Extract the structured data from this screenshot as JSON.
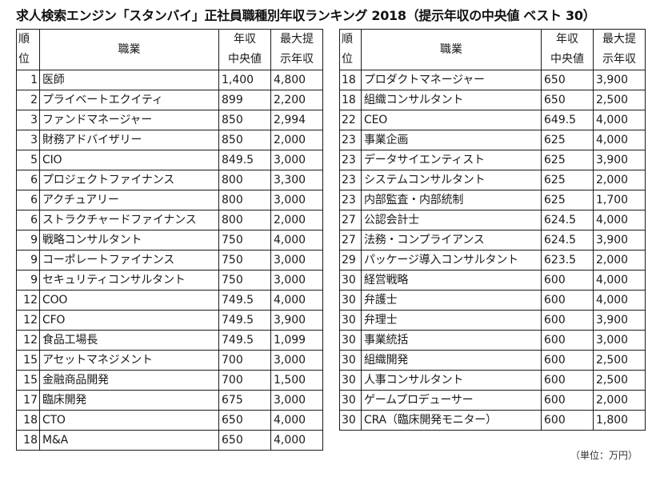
{
  "title": "求人検索エンジン「スタンバイ」正社員職種別年収ランキング 2018（提示年収の中央値 ベスト 30）",
  "headers": {
    "rank_line1": "順",
    "rank_line2": "位",
    "job": "職業",
    "median_line1": "年収",
    "median_line2": "中央値",
    "max_line1": "最大提",
    "max_line2": "示年収"
  },
  "unit_note": "（単位：万円）",
  "left_table": [
    {
      "rank": "1",
      "job": "医師",
      "median": "1,400",
      "max": "4,800"
    },
    {
      "rank": "2",
      "job": "プライベートエクイティ",
      "median": "899",
      "max": "2,200"
    },
    {
      "rank": "3",
      "job": "ファンドマネージャー",
      "median": "850",
      "max": "2,994"
    },
    {
      "rank": "3",
      "job": "財務アドバイザリー",
      "median": "850",
      "max": "2,000"
    },
    {
      "rank": "5",
      "job": "CIO",
      "median": "849.5",
      "max": "3,000"
    },
    {
      "rank": "6",
      "job": "プロジェクトファイナンス",
      "median": "800",
      "max": "3,300"
    },
    {
      "rank": "6",
      "job": "アクチュアリー",
      "median": "800",
      "max": "3,000"
    },
    {
      "rank": "6",
      "job": "ストラクチャードファイナンス",
      "median": "800",
      "max": "2,000"
    },
    {
      "rank": "9",
      "job": "戦略コンサルタント",
      "median": "750",
      "max": "4,000"
    },
    {
      "rank": "9",
      "job": "コーポレートファイナンス",
      "median": "750",
      "max": "3,000"
    },
    {
      "rank": "9",
      "job": "セキュリティコンサルタント",
      "median": "750",
      "max": "3,000"
    },
    {
      "rank": "12",
      "job": "COO",
      "median": "749.5",
      "max": "4,000"
    },
    {
      "rank": "12",
      "job": "CFO",
      "median": "749.5",
      "max": "3,900"
    },
    {
      "rank": "12",
      "job": "食品工場長",
      "median": "749.5",
      "max": "1,099"
    },
    {
      "rank": "15",
      "job": "アセットマネジメント",
      "median": "700",
      "max": "3,000"
    },
    {
      "rank": "15",
      "job": "金融商品開発",
      "median": "700",
      "max": "1,500"
    },
    {
      "rank": "17",
      "job": "臨床開発",
      "median": "675",
      "max": "3,000"
    },
    {
      "rank": "18",
      "job": "CTO",
      "median": "650",
      "max": "4,000"
    },
    {
      "rank": "18",
      "job": "M&A",
      "median": "650",
      "max": "4,000"
    }
  ],
  "right_table": [
    {
      "rank": "18",
      "job": "プロダクトマネージャー",
      "median": "650",
      "max": "3,900"
    },
    {
      "rank": "18",
      "job": "組織コンサルタント",
      "median": "650",
      "max": "2,500"
    },
    {
      "rank": "22",
      "job": "CEO",
      "median": "649.5",
      "max": "4,000"
    },
    {
      "rank": "23",
      "job": "事業企画",
      "median": "625",
      "max": "4,000"
    },
    {
      "rank": "23",
      "job": "データサイエンティスト",
      "median": "625",
      "max": "3,900"
    },
    {
      "rank": "23",
      "job": "システムコンサルタント",
      "median": "625",
      "max": "2,000"
    },
    {
      "rank": "23",
      "job": "内部監査・内部統制",
      "median": "625",
      "max": "1,700"
    },
    {
      "rank": "27",
      "job": "公認会計士",
      "median": "624.5",
      "max": "4,000"
    },
    {
      "rank": "27",
      "job": "法務・コンプライアンス",
      "median": "624.5",
      "max": "3,900"
    },
    {
      "rank": "29",
      "job": "パッケージ導入コンサルタント",
      "median": "623.5",
      "max": "2,000"
    },
    {
      "rank": "30",
      "job": "経営戦略",
      "median": "600",
      "max": "4,000"
    },
    {
      "rank": "30",
      "job": "弁護士",
      "median": "600",
      "max": "4,000"
    },
    {
      "rank": "30",
      "job": "弁理士",
      "median": "600",
      "max": "3,900"
    },
    {
      "rank": "30",
      "job": "事業統括",
      "median": "600",
      "max": "3,000"
    },
    {
      "rank": "30",
      "job": "組織開発",
      "median": "600",
      "max": "2,500"
    },
    {
      "rank": "30",
      "job": "人事コンサルタント",
      "median": "600",
      "max": "2,500"
    },
    {
      "rank": "30",
      "job": "ゲームプロデューサー",
      "median": "600",
      "max": "2,000"
    },
    {
      "rank": "30",
      "job": "CRA（臨床開発モニター）",
      "median": "600",
      "max": "1,800"
    }
  ]
}
